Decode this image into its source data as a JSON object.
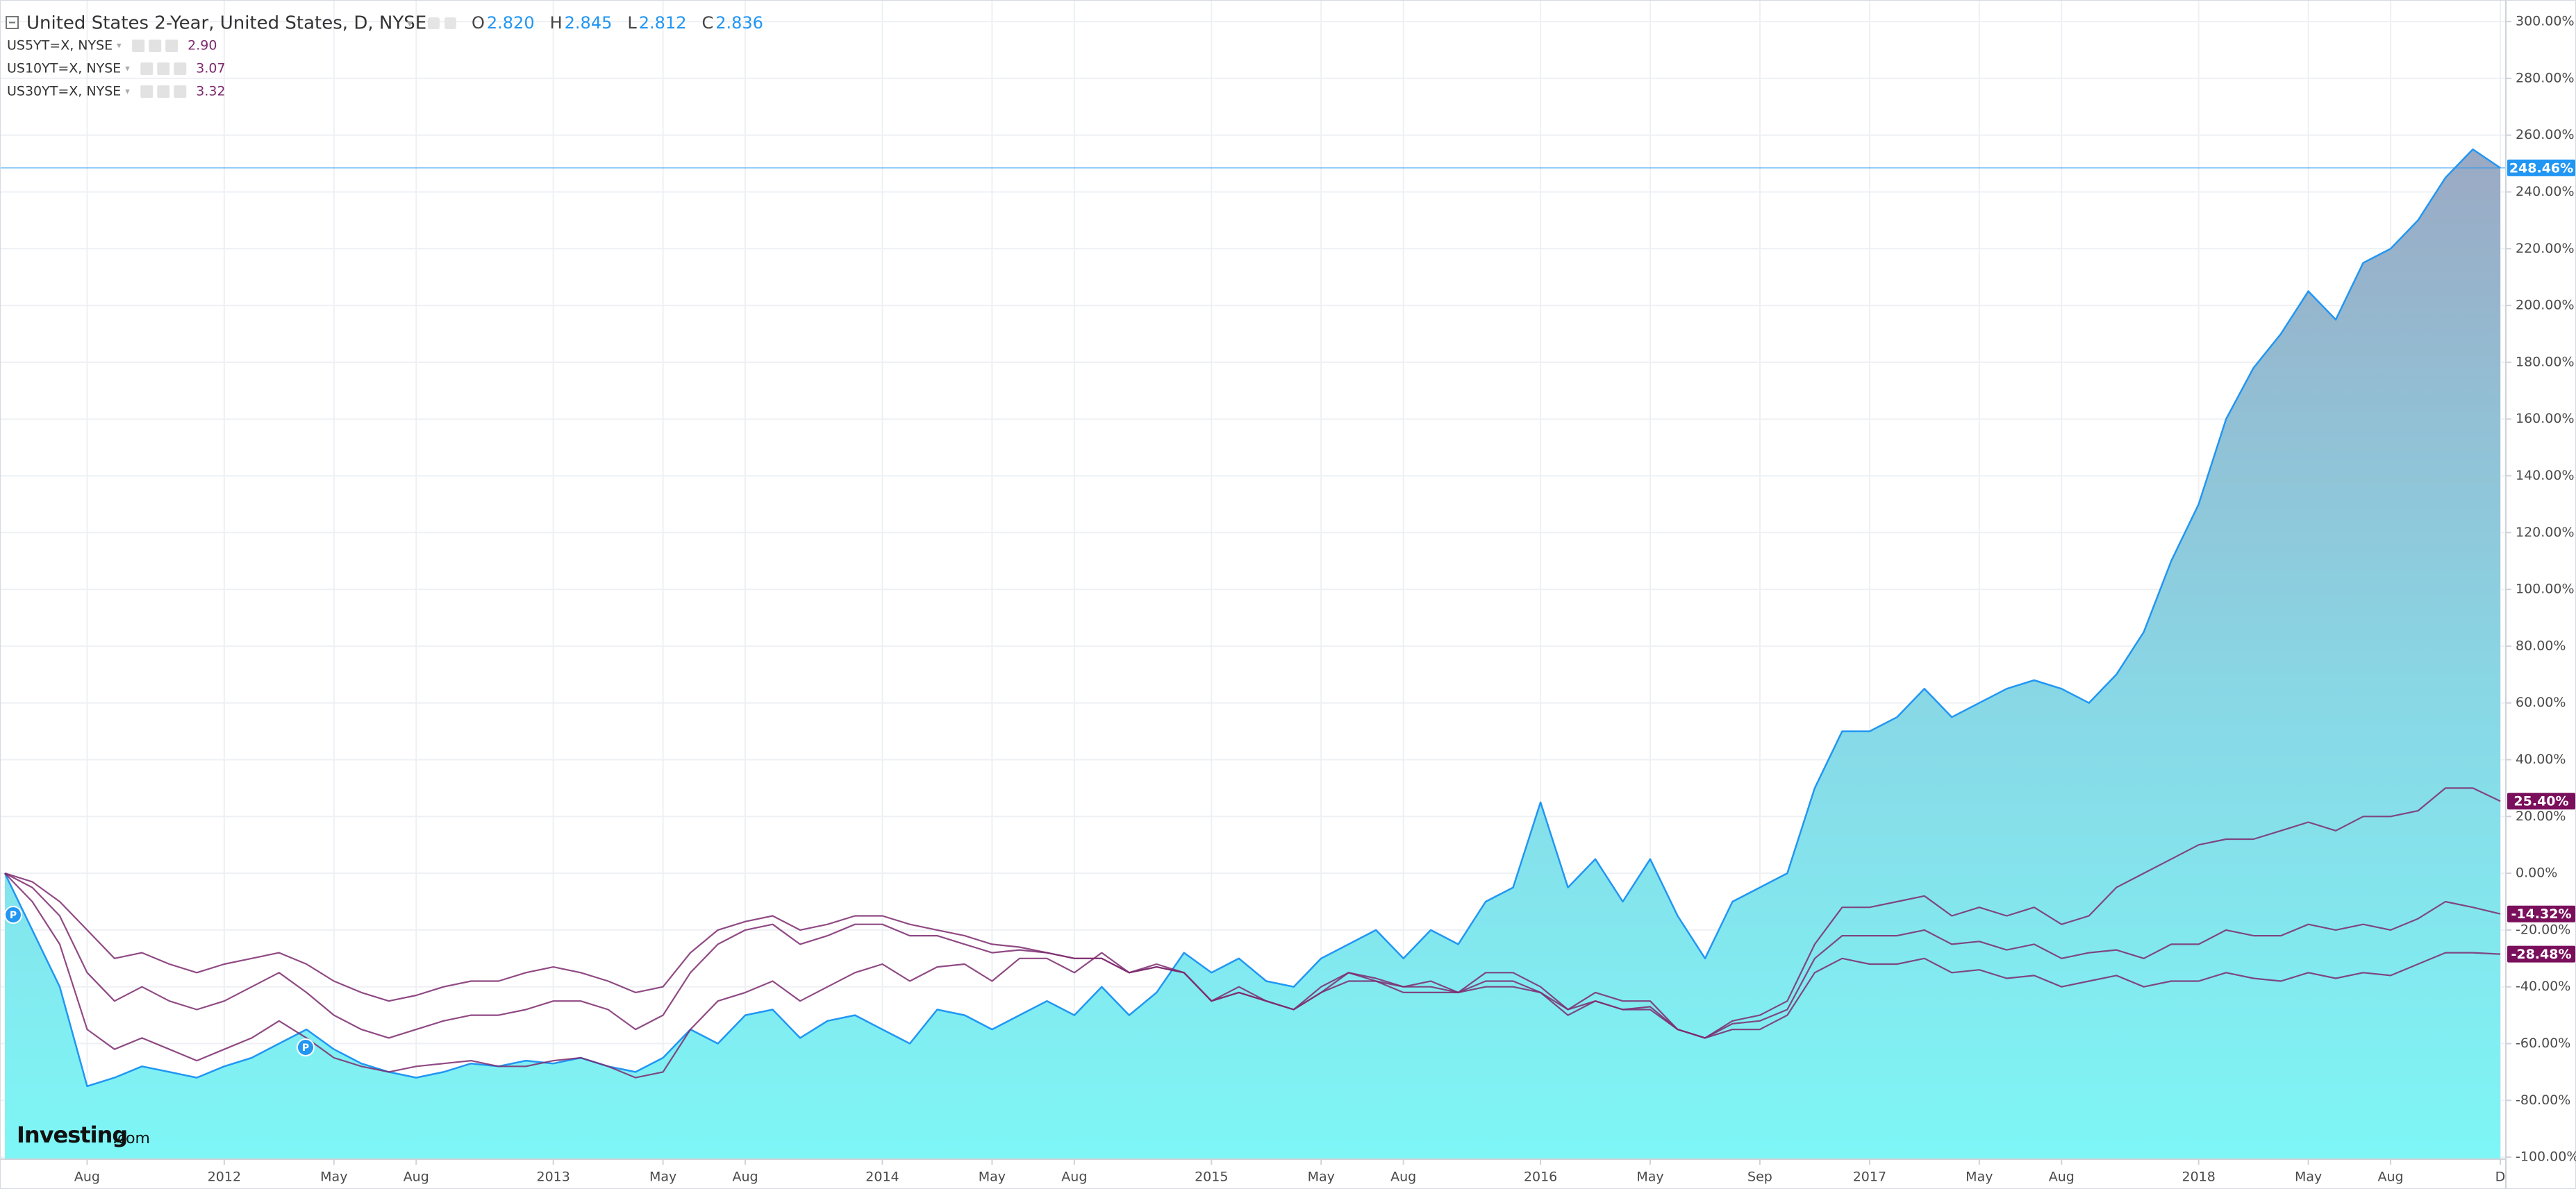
{
  "chart_data": {
    "type": "area",
    "title": "United States 2-Year, United States, D, NYSE",
    "ohlc": [
      {
        "key": "O",
        "value": "2.820"
      },
      {
        "key": "H",
        "value": "2.845"
      },
      {
        "key": "L",
        "value": "2.812"
      },
      {
        "key": "C",
        "value": "2.836"
      }
    ],
    "categories": [
      null,
      null,
      null,
      "Aug",
      null,
      null,
      null,
      null,
      "2012",
      null,
      null,
      null,
      "May",
      null,
      null,
      "Aug",
      null,
      null,
      null,
      null,
      "2013",
      null,
      null,
      null,
      "May",
      null,
      null,
      "Aug",
      null,
      null,
      null,
      null,
      "2014",
      null,
      null,
      null,
      "May",
      null,
      null,
      "Aug",
      null,
      null,
      null,
      null,
      "2015",
      null,
      null,
      null,
      "May",
      null,
      null,
      "Aug",
      null,
      null,
      null,
      null,
      "2016",
      null,
      null,
      null,
      "May",
      null,
      null,
      null,
      "Sep",
      null,
      null,
      null,
      "2017",
      null,
      null,
      null,
      "May",
      null,
      null,
      "Aug",
      null,
      null,
      null,
      null,
      "2018",
      null,
      null,
      null,
      "May",
      null,
      null,
      "Aug",
      null,
      null,
      null,
      "D"
    ],
    "series": [
      {
        "type": "area",
        "color": "#2196f3",
        "last_label": "248.46%",
        "values": [
          0,
          -20,
          -40,
          -75,
          -72,
          -68,
          -70,
          -72,
          -68,
          -65,
          -60,
          -55,
          -62,
          -67,
          -70,
          -72,
          -70,
          -67,
          -68,
          -66,
          -67,
          -65,
          -68,
          -70,
          -65,
          -55,
          -60,
          -50,
          -48,
          -58,
          -52,
          -50,
          -55,
          -60,
          -48,
          -50,
          -55,
          -50,
          -45,
          -50,
          -40,
          -50,
          -42,
          -28,
          -35,
          -30,
          -38,
          -40,
          -30,
          -25,
          -20,
          -30,
          -20,
          -25,
          -10,
          -5,
          25,
          -5,
          5,
          -10,
          5,
          -15,
          -30,
          -10,
          -5,
          0,
          30,
          50,
          50,
          55,
          65,
          55,
          60,
          65,
          68,
          65,
          60,
          70,
          85,
          110,
          130,
          160,
          178,
          190,
          205,
          195,
          215,
          220,
          230,
          245,
          255,
          248.46
        ]
      },
      {
        "type": "line",
        "name": "US5YT=X, NYSE",
        "price": "2.90",
        "color": "#7d2a6e",
        "last_label": "25.40%",
        "values": [
          0,
          -10,
          -25,
          -55,
          -62,
          -58,
          -62,
          -66,
          -62,
          -58,
          -52,
          -58,
          -65,
          -68,
          -70,
          -68,
          -67,
          -66,
          -68,
          -68,
          -66,
          -65,
          -68,
          -72,
          -70,
          -55,
          -45,
          -42,
          -38,
          -45,
          -40,
          -35,
          -32,
          -38,
          -33,
          -32,
          -38,
          -30,
          -30,
          -35,
          -28,
          -35,
          -32,
          -35,
          -45,
          -40,
          -45,
          -48,
          -40,
          -35,
          -38,
          -40,
          -38,
          -42,
          -35,
          -35,
          -40,
          -48,
          -42,
          -45,
          -45,
          -55,
          -58,
          -52,
          -50,
          -45,
          -25,
          -12,
          -12,
          -10,
          -8,
          -15,
          -12,
          -15,
          -12,
          -18,
          -15,
          -5,
          0,
          5,
          10,
          12,
          12,
          15,
          18,
          15,
          20,
          20,
          22,
          30,
          30,
          25.4
        ]
      },
      {
        "type": "line",
        "name": "US10YT=X, NYSE",
        "price": "3.07",
        "color": "#7d2a6e",
        "last_label": "-14.32%",
        "values": [
          0,
          -5,
          -15,
          -35,
          -45,
          -40,
          -45,
          -48,
          -45,
          -40,
          -35,
          -42,
          -50,
          -55,
          -58,
          -55,
          -52,
          -50,
          -50,
          -48,
          -45,
          -45,
          -48,
          -55,
          -50,
          -35,
          -25,
          -20,
          -18,
          -25,
          -22,
          -18,
          -18,
          -22,
          -22,
          -25,
          -28,
          -27,
          -28,
          -30,
          -30,
          -35,
          -33,
          -35,
          -45,
          -42,
          -45,
          -48,
          -42,
          -35,
          -37,
          -40,
          -40,
          -42,
          -38,
          -38,
          -42,
          -50,
          -45,
          -48,
          -47,
          -55,
          -58,
          -53,
          -52,
          -48,
          -30,
          -22,
          -22,
          -22,
          -20,
          -25,
          -24,
          -27,
          -25,
          -30,
          -28,
          -27,
          -30,
          -25,
          -25,
          -20,
          -22,
          -22,
          -18,
          -20,
          -18,
          -20,
          -16,
          -10,
          -12,
          -14.32
        ]
      },
      {
        "type": "line",
        "name": "US30YT=X, NYSE",
        "price": "3.32",
        "color": "#7d2a6e",
        "last_label": "-28.48%",
        "values": [
          0,
          -3,
          -10,
          -20,
          -30,
          -28,
          -32,
          -35,
          -32,
          -30,
          -28,
          -32,
          -38,
          -42,
          -45,
          -43,
          -40,
          -38,
          -38,
          -35,
          -33,
          -35,
          -38,
          -42,
          -40,
          -28,
          -20,
          -17,
          -15,
          -20,
          -18,
          -15,
          -15,
          -18,
          -20,
          -22,
          -25,
          -26,
          -28,
          -30,
          -30,
          -35,
          -33,
          -35,
          -45,
          -42,
          -45,
          -48,
          -42,
          -38,
          -38,
          -42,
          -42,
          -42,
          -40,
          -40,
          -42,
          -48,
          -45,
          -48,
          -48,
          -55,
          -58,
          -55,
          -55,
          -50,
          -35,
          -30,
          -32,
          -32,
          -30,
          -35,
          -34,
          -37,
          -36,
          -40,
          -38,
          -36,
          -40,
          -38,
          -38,
          -35,
          -37,
          -38,
          -35,
          -37,
          -35,
          -36,
          -32,
          -28,
          -28,
          -28.48
        ]
      }
    ],
    "ylim": [
      -100.7,
      307.6
    ],
    "yticks": [
      {
        "value": -100,
        "label": "-100.00%"
      },
      {
        "value": -80,
        "label": "-80.00%"
      },
      {
        "value": -60,
        "label": "-60.00%"
      },
      {
        "value": -40,
        "label": "-40.00%"
      },
      {
        "value": -20,
        "label": "-20.00%"
      },
      {
        "value": 0,
        "label": "0.00%"
      },
      {
        "value": 20,
        "label": "20.00%"
      },
      {
        "value": 40,
        "label": "40.00%"
      },
      {
        "value": 60,
        "label": "60.00%"
      },
      {
        "value": 80,
        "label": "80.00%"
      },
      {
        "value": 100,
        "label": "100.00%"
      },
      {
        "value": 120,
        "label": "120.00%"
      },
      {
        "value": 140,
        "label": "140.00%"
      },
      {
        "value": 160,
        "label": "160.00%"
      },
      {
        "value": 180,
        "label": "180.00%"
      },
      {
        "value": 200,
        "label": "200.00%"
      },
      {
        "value": 220,
        "label": "220.00%"
      },
      {
        "value": 240,
        "label": "240.00%"
      },
      {
        "value": 260,
        "label": "260.00%"
      },
      {
        "value": 280,
        "label": "280.00%"
      },
      {
        "value": 300,
        "label": "300.00%"
      }
    ],
    "grid": true,
    "markers": [
      "P",
      "P"
    ],
    "logo": "Investing",
    "logo_suffix": ".com"
  }
}
